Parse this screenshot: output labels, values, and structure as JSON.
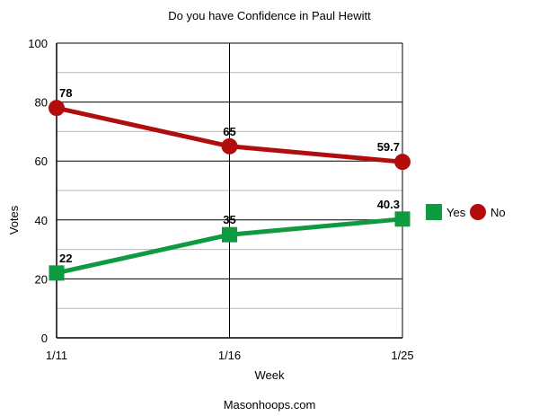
{
  "chart_data": {
    "type": "line",
    "title": "Do you have Confidence in Paul Hewitt",
    "xlabel": "Week",
    "ylabel": "Votes",
    "categories": [
      "1/11",
      "1/16",
      "1/25"
    ],
    "ylim": [
      0,
      100
    ],
    "yticks": [
      0,
      20,
      40,
      60,
      80,
      100
    ],
    "grid": true,
    "legend_position": "right",
    "series": [
      {
        "name": "Yes",
        "values": [
          22,
          35,
          40.3
        ],
        "labels": [
          "22",
          "35",
          "40.3"
        ],
        "color": "#0e9a3e",
        "marker": "square"
      },
      {
        "name": "No",
        "values": [
          78,
          65,
          59.7
        ],
        "labels": [
          "78",
          "65",
          "59.7"
        ],
        "color": "#b10d0d",
        "marker": "circle"
      }
    ]
  },
  "footer": "Masonhoops.com"
}
